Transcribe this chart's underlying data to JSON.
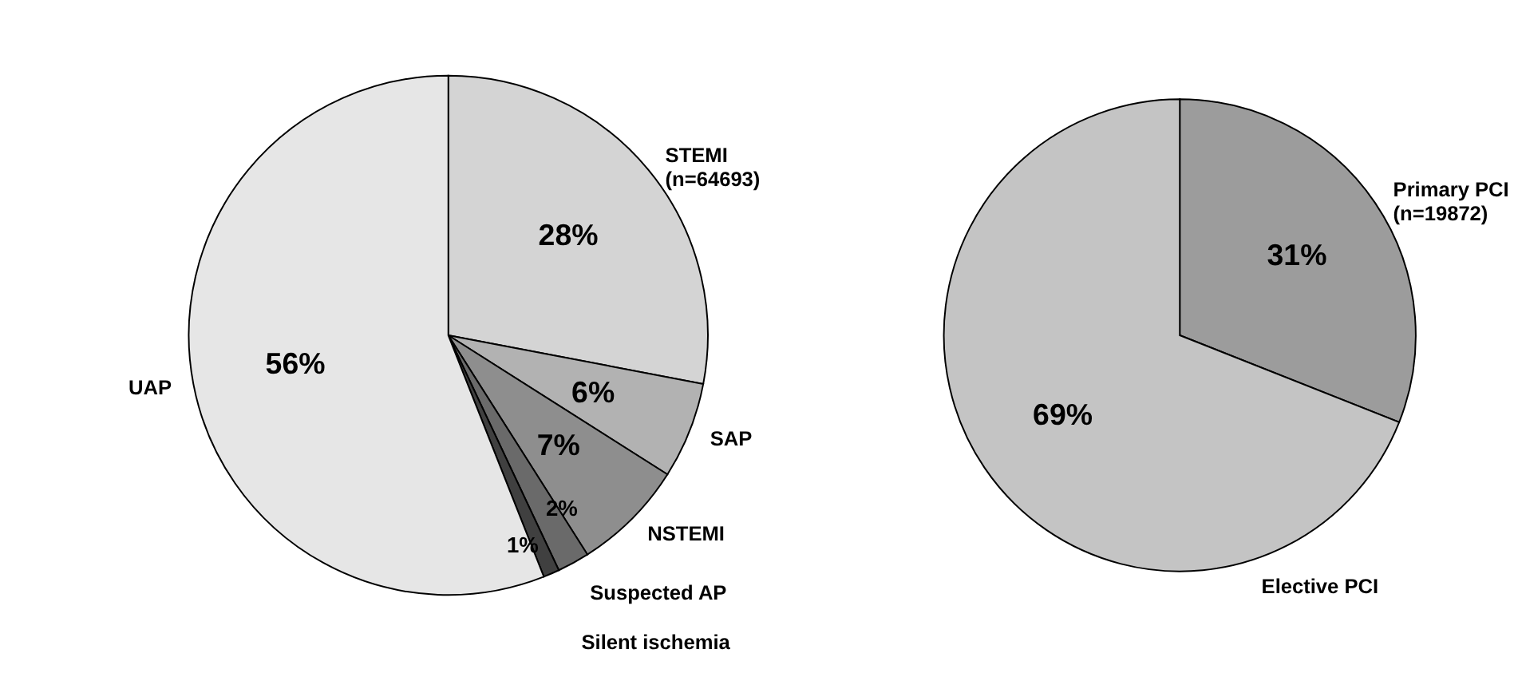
{
  "chart_data": [
    {
      "type": "pie",
      "categories": [
        "STEMI\n(n=64693)",
        "SAP",
        "NSTEMI",
        "Suspected AP",
        "Silent ischemia",
        "UAP"
      ],
      "values": [
        28,
        6,
        7,
        2,
        1,
        56
      ],
      "value_labels": [
        "28%",
        "6%",
        "7%",
        "2%",
        "1%",
        "56%"
      ],
      "colors": [
        "#d4d4d4",
        "#b2b2b2",
        "#8e8e8e",
        "#6a6a6a",
        "#404040",
        "#e6e6e6"
      ]
    },
    {
      "type": "pie",
      "categories": [
        "Primary PCI\n(n=19872)",
        "Elective PCI"
      ],
      "values": [
        31,
        69
      ],
      "value_labels": [
        "31%",
        "69%"
      ],
      "colors": [
        "#9c9c9c",
        "#c4c4c4"
      ]
    }
  ]
}
